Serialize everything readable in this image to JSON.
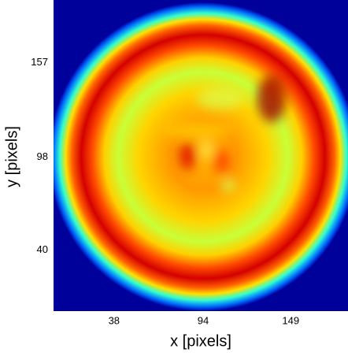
{
  "chart_data": {
    "type": "heatmap",
    "xlabel": "x [pixels]",
    "ylabel": "y [pixels]",
    "xlim": [
      0,
      185
    ],
    "ylim": [
      2,
      196
    ],
    "xticks": [
      38,
      94,
      149
    ],
    "yticks": [
      40,
      98,
      157
    ],
    "colormap": "jet",
    "grid": false
  }
}
